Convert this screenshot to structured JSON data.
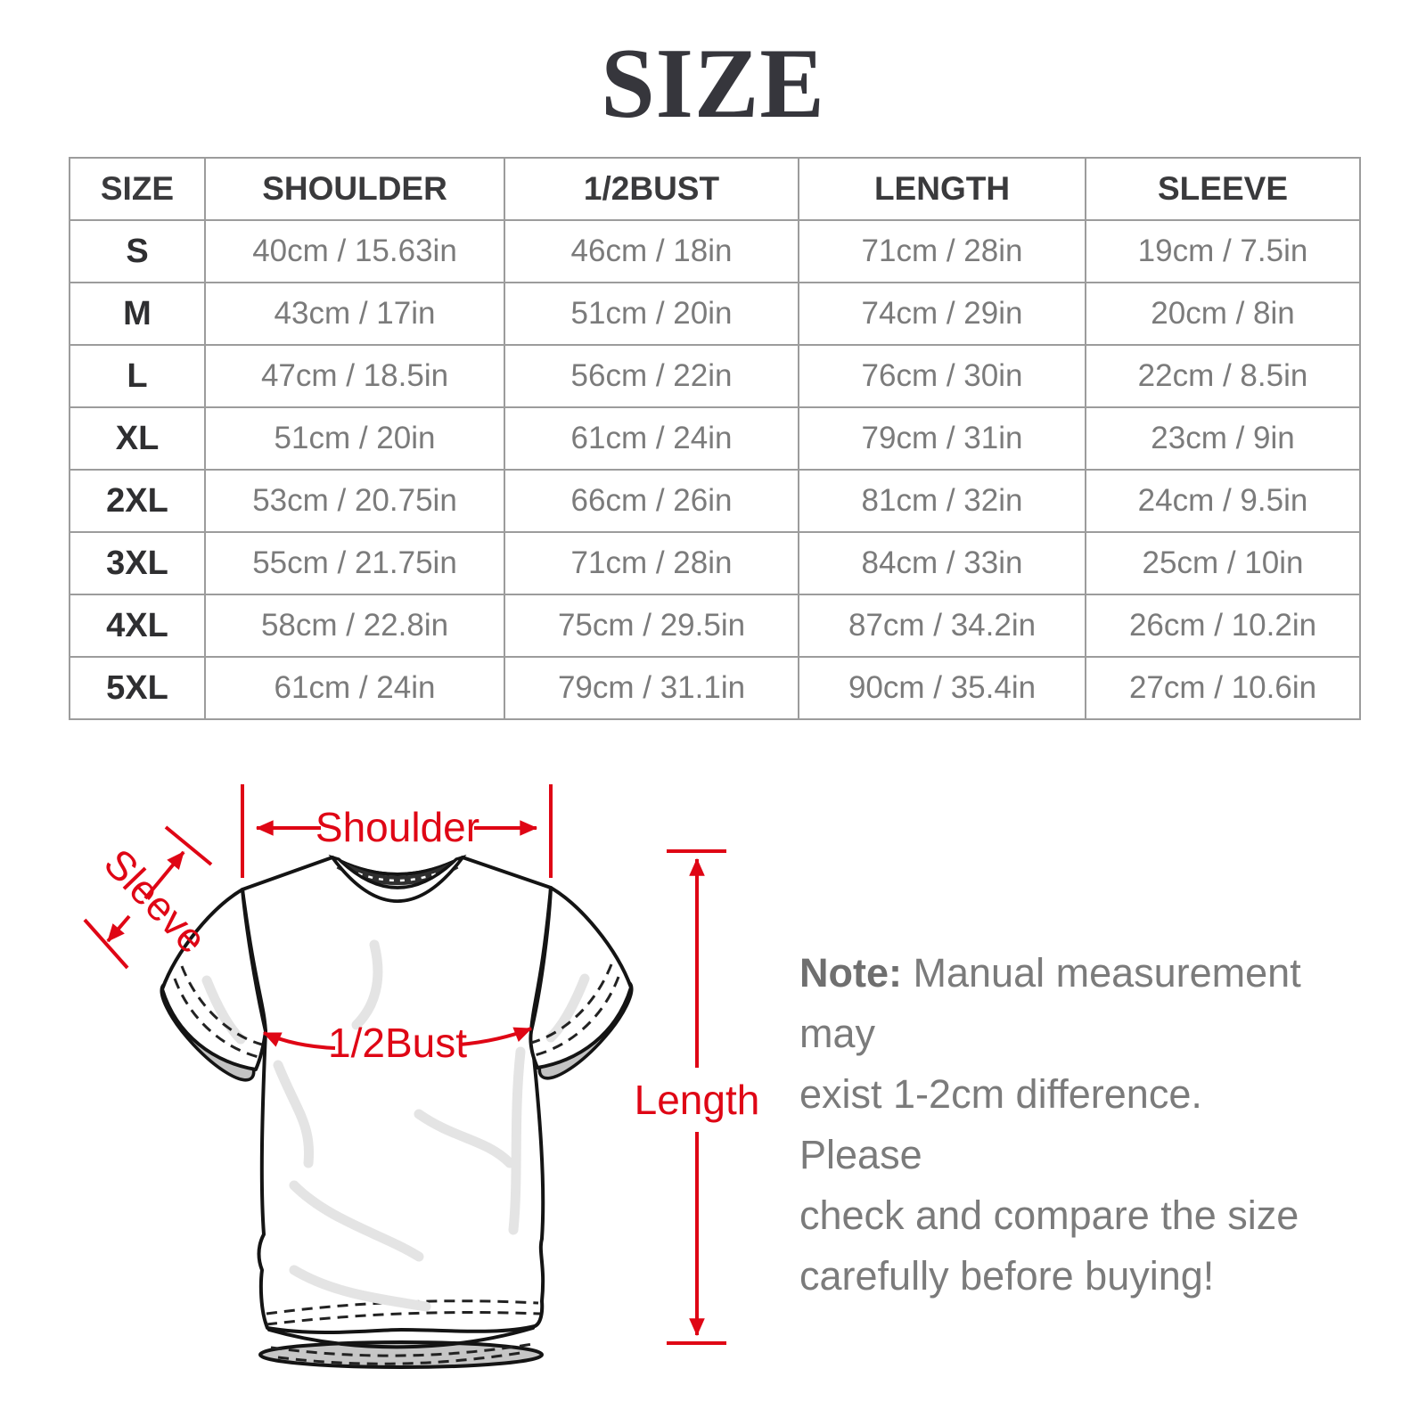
{
  "title": "SIZE",
  "colors": {
    "accent": "#df0615",
    "heading": "#36363c",
    "body_gray": "#7b7b7b",
    "table_border": "#9c9c9c"
  },
  "size_table": {
    "columns": [
      "SIZE",
      "SHOULDER",
      "1/2BUST",
      "LENGTH",
      "SLEEVE"
    ],
    "rows": [
      [
        "S",
        "40cm / 15.63in",
        "46cm / 18in",
        "71cm / 28in",
        "19cm / 7.5in"
      ],
      [
        "M",
        "43cm / 17in",
        "51cm / 20in",
        "74cm / 29in",
        "20cm / 8in"
      ],
      [
        "L",
        "47cm / 18.5in",
        "56cm / 22in",
        "76cm / 30in",
        "22cm / 8.5in"
      ],
      [
        "XL",
        "51cm / 20in",
        "61cm / 24in",
        "79cm / 31in",
        "23cm / 9in"
      ],
      [
        "2XL",
        "53cm / 20.75in",
        "66cm / 26in",
        "81cm / 32in",
        "24cm / 9.5in"
      ],
      [
        "3XL",
        "55cm / 21.75in",
        "71cm / 28in",
        "84cm / 33in",
        "25cm / 10in"
      ],
      [
        "4XL",
        "58cm / 22.8in",
        "75cm / 29.5in",
        "87cm / 34.2in",
        "26cm / 10.2in"
      ],
      [
        "5XL",
        "61cm / 24in",
        "79cm / 31.1in",
        "90cm / 35.4in",
        "27cm / 10.6in"
      ]
    ]
  },
  "diagram": {
    "labels": {
      "shoulder": "Shoulder",
      "sleeve": "Sleeve",
      "half_bust": "1/2Bust",
      "length": "Length"
    }
  },
  "note": {
    "prefix": "Note:",
    "lines": [
      "Manual measurement may",
      "exist 1-2cm difference. Please",
      "check and compare the size",
      "carefully before buying!"
    ]
  }
}
